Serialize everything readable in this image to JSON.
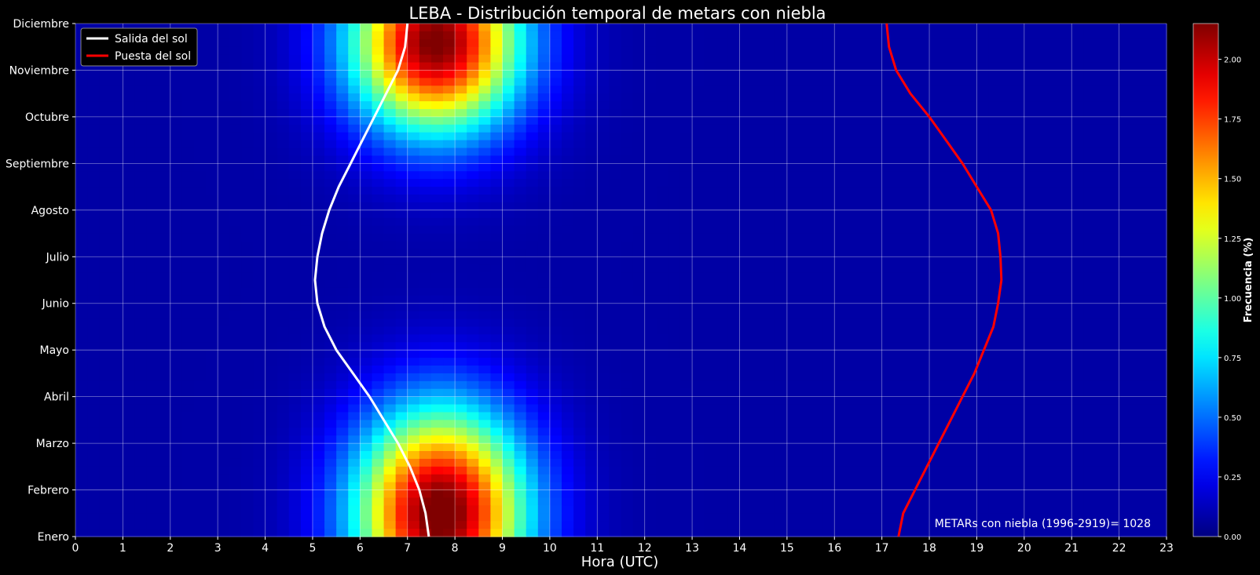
{
  "chart_data": {
    "type": "heatmap",
    "title": "LEBA - Distribución temporal de metars con niebla",
    "xlabel": "Hora (UTC)",
    "x_ticks": [
      "0",
      "1",
      "2",
      "3",
      "4",
      "5",
      "6",
      "7",
      "8",
      "9",
      "10",
      "11",
      "12",
      "13",
      "14",
      "15",
      "16",
      "17",
      "18",
      "19",
      "20",
      "21",
      "22",
      "23"
    ],
    "xlim": [
      0,
      23
    ],
    "y_ticks": [
      "Enero",
      "Febrero",
      "Marzo",
      "Abril",
      "Mayo",
      "Junio",
      "Julio",
      "Agosto",
      "Septiembre",
      "Octubre",
      "Noviembre",
      "Diciembre"
    ],
    "ylim": [
      0,
      11
    ],
    "grid": true,
    "colormap": "jet",
    "colorbar": {
      "label": "Frecuencia  (%)",
      "range": [
        0,
        2.15
      ],
      "ticks": [
        "0.00",
        "0.25",
        "0.50",
        "0.75",
        "1.00",
        "1.25",
        "1.50",
        "1.75",
        "2.00"
      ]
    },
    "heatmap_blobs": [
      {
        "center_hour": 7.7,
        "center_month": 0.5,
        "peak": 2.15,
        "sigma_hour": 1.25,
        "sigma_month": 1.55
      },
      {
        "center_hour": 7.6,
        "center_month": 10.6,
        "peak": 2.1,
        "sigma_hour": 1.25,
        "sigma_month": 1.35
      }
    ],
    "heatmap_background": 0.08,
    "series": [
      {
        "name": "Salida del sol",
        "color": "#ffffff",
        "month": [
          0,
          0.5,
          1,
          1.5,
          2,
          2.5,
          3,
          3.5,
          4,
          4.5,
          5,
          5.5,
          6,
          6.5,
          7,
          7.5,
          8,
          8.5,
          9,
          9.5,
          10,
          10.5,
          11
        ],
        "hour": [
          7.45,
          7.38,
          7.25,
          7.05,
          6.8,
          6.5,
          6.2,
          5.85,
          5.5,
          5.25,
          5.1,
          5.05,
          5.1,
          5.2,
          5.35,
          5.55,
          5.8,
          6.05,
          6.3,
          6.55,
          6.8,
          6.95,
          7.0
        ]
      },
      {
        "name": "Puesta del sol",
        "color": "#ff0000",
        "month": [
          0,
          0.5,
          1,
          1.5,
          2,
          2.5,
          3,
          3.5,
          4,
          4.5,
          5,
          5.5,
          6,
          6.5,
          7,
          7.5,
          8,
          8.5,
          9,
          9.5,
          10,
          10.5,
          11
        ],
        "hour": [
          17.35,
          17.45,
          17.7,
          17.95,
          18.2,
          18.45,
          18.7,
          18.95,
          19.15,
          19.35,
          19.45,
          19.52,
          19.5,
          19.45,
          19.3,
          19.0,
          18.7,
          18.35,
          18.0,
          17.6,
          17.3,
          17.15,
          17.1
        ]
      }
    ],
    "legend": {
      "position": "top-left",
      "items": [
        "Salida del sol",
        "Puesta del sol"
      ]
    },
    "annotation": "METARs con niebla (1996-2919)= 1028"
  }
}
